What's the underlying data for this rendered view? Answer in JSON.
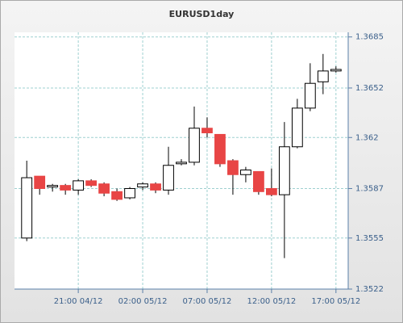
{
  "chart_data": {
    "type": "candlestick",
    "title": "EURUSD1day",
    "categories": [
      "",
      "",
      "",
      "",
      "21:00 04/12",
      "",
      "",
      "",
      "",
      "02:00 05/12",
      "",
      "",
      "",
      "",
      "07:00 05/12",
      "",
      "",
      "",
      "",
      "12:00 05/12",
      "",
      "",
      "",
      "",
      "17:00 05/12"
    ],
    "open": [
      1.3555,
      1.3595,
      1.3588,
      1.3589,
      1.3586,
      1.3592,
      1.359,
      1.3585,
      1.3581,
      1.3588,
      1.359,
      1.3586,
      1.3603,
      1.3604,
      1.3626,
      1.3622,
      1.3605,
      1.3596,
      1.3598,
      1.3587,
      1.3583,
      1.3614,
      1.3639,
      1.3656,
      1.3663
    ],
    "high": [
      1.3605,
      1.3595,
      1.359,
      1.359,
      1.3593,
      1.3593,
      1.3591,
      1.3587,
      1.3588,
      1.3591,
      1.3591,
      1.3614,
      1.3606,
      1.364,
      1.3633,
      1.3622,
      1.3606,
      1.3601,
      1.3598,
      1.36,
      1.363,
      1.3645,
      1.3668,
      1.3674,
      1.3666
    ],
    "low": [
      1.3553,
      1.3583,
      1.3585,
      1.3583,
      1.3583,
      1.3588,
      1.3582,
      1.3579,
      1.358,
      1.3586,
      1.3584,
      1.3583,
      1.3602,
      1.3602,
      1.362,
      1.3601,
      1.3583,
      1.3591,
      1.3583,
      1.3582,
      1.3542,
      1.3613,
      1.3637,
      1.3648,
      1.3662
    ],
    "close": [
      1.3594,
      1.3587,
      1.3589,
      1.3586,
      1.3592,
      1.3589,
      1.3584,
      1.358,
      1.3587,
      1.359,
      1.3586,
      1.3602,
      1.3604,
      1.3626,
      1.3623,
      1.3603,
      1.3596,
      1.3599,
      1.3585,
      1.3583,
      1.3614,
      1.3639,
      1.3655,
      1.3663,
      1.3664
    ],
    "up_color": "#ffffff",
    "down_color": "#e84545",
    "ylim": [
      1.3522,
      1.3688
    ],
    "yticks": [
      1.3522,
      1.3555,
      1.3587,
      1.362,
      1.3652,
      1.3685
    ],
    "grid": true
  }
}
